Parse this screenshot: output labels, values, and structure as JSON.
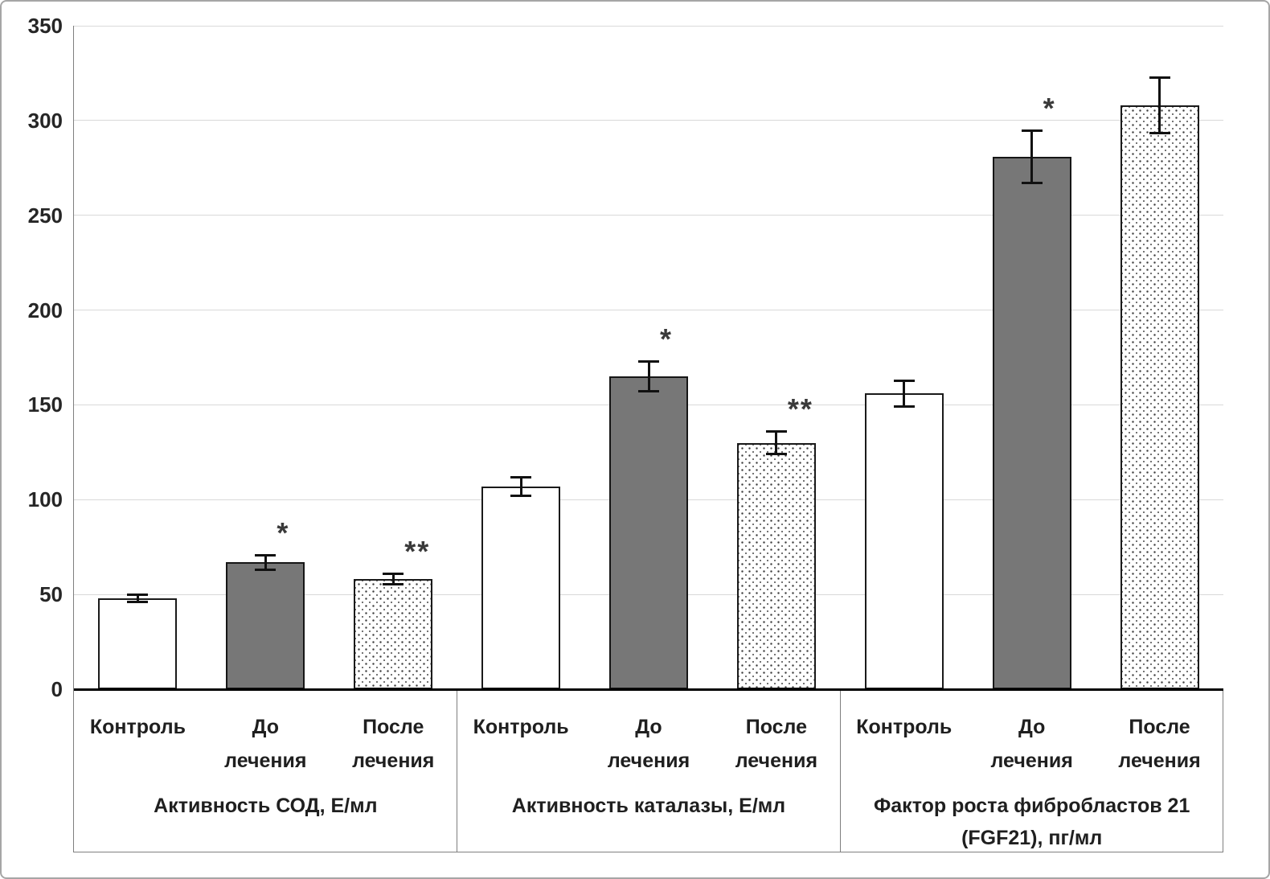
{
  "chart_data": {
    "type": "bar",
    "title": "",
    "xlabel": "",
    "ylabel": "",
    "ylim": [
      0,
      350
    ],
    "yticks": [
      0,
      50,
      100,
      150,
      200,
      250,
      300,
      350
    ],
    "grid": true,
    "legend_position": "none",
    "bar_styles": {
      "control": {
        "fill": "#ffffff",
        "pattern": "solid-white-outline"
      },
      "before": {
        "fill": "#777777",
        "pattern": "solid-dark-gray"
      },
      "after": {
        "fill": "#ffffff",
        "pattern": "stippled-dots"
      }
    },
    "style_note": "Контроль = white bar, До лечения = dark gray bar, После лечения = dotted (stippled) bar; error bars on all; * and ** significance marks",
    "groups": [
      {
        "label": "Активность СОД, Е/мл",
        "label_lines": [
          "Активность СОД, Е/мл"
        ],
        "bars": [
          {
            "category": "Контроль",
            "category_lines": [
              "Контроль"
            ],
            "value": 48,
            "error": 2,
            "style": "control",
            "annotation": ""
          },
          {
            "category": "До лечения",
            "category_lines": [
              "До",
              "лечения"
            ],
            "value": 67,
            "error": 4,
            "style": "before",
            "annotation": "*"
          },
          {
            "category": "После лечения",
            "category_lines": [
              "После",
              "лечения"
            ],
            "value": 58,
            "error": 3,
            "style": "after",
            "annotation": "**"
          }
        ]
      },
      {
        "label": "Активность каталазы, Е/мл",
        "label_lines": [
          "Активность каталазы, Е/мл"
        ],
        "bars": [
          {
            "category": "Контроль",
            "category_lines": [
              "Контроль"
            ],
            "value": 107,
            "error": 5,
            "style": "control",
            "annotation": ""
          },
          {
            "category": "До лечения",
            "category_lines": [
              "До",
              "лечения"
            ],
            "value": 165,
            "error": 8,
            "style": "before",
            "annotation": "*"
          },
          {
            "category": "После лечения",
            "category_lines": [
              "После",
              "лечения"
            ],
            "value": 130,
            "error": 6,
            "style": "after",
            "annotation": "**"
          }
        ]
      },
      {
        "label": "Фактор роста фибробластов 21 (FGF21), пг/мл",
        "label_lines": [
          "Фактор роста фибробластов 21",
          "(FGF21), пг/мл"
        ],
        "bars": [
          {
            "category": "Контроль",
            "category_lines": [
              "Контроль"
            ],
            "value": 156,
            "error": 7,
            "style": "control",
            "annotation": ""
          },
          {
            "category": "До лечения",
            "category_lines": [
              "До",
              "лечения"
            ],
            "value": 281,
            "error": 14,
            "style": "before",
            "annotation": "*"
          },
          {
            "category": "После лечения",
            "category_lines": [
              "После",
              "лечения"
            ],
            "value": 308,
            "error": 15,
            "style": "after",
            "annotation": ""
          }
        ]
      }
    ],
    "colors": {
      "gridline": "#d9d9d9",
      "axis": "#000000",
      "separator": "#7f7f7f",
      "text": "#262626",
      "figure_border": "#a6a6a6",
      "bar_gray": "#777777"
    }
  }
}
